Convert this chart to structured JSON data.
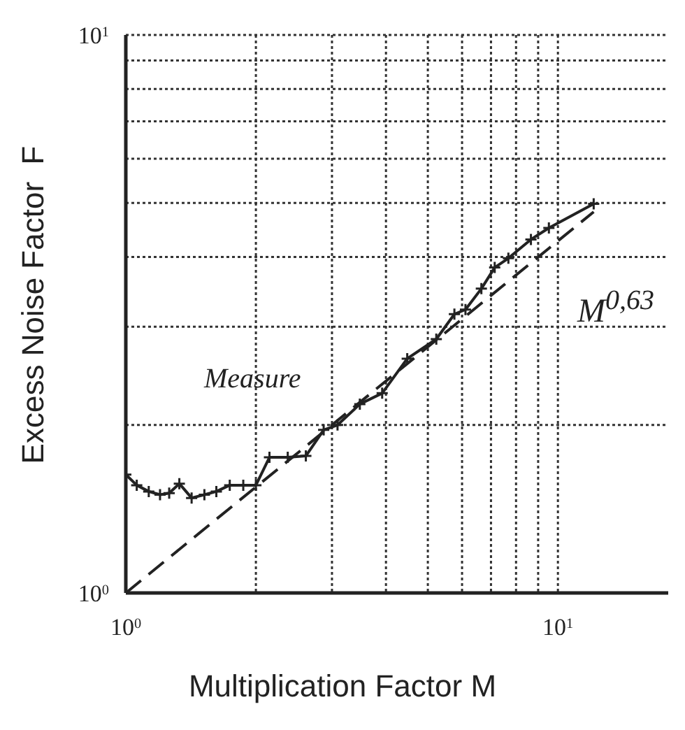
{
  "chart_data": {
    "type": "line",
    "xlabel": "Multiplication Factor M",
    "ylabel": "Excess Noise Factor  F",
    "log": "xy",
    "grid": true,
    "xlim": [
      1,
      18
    ],
    "ylim": [
      1,
      10
    ],
    "xticks": [
      {
        "value": 1,
        "label": "10$^{0}$"
      },
      {
        "value": 2,
        "label": null
      },
      {
        "value": 3,
        "label": null
      },
      {
        "value": 4,
        "label": null
      },
      {
        "value": 5,
        "label": null
      },
      {
        "value": 6,
        "label": null
      },
      {
        "value": 7,
        "label": null
      },
      {
        "value": 8,
        "label": null
      },
      {
        "value": 9,
        "label": null
      },
      {
        "value": 10,
        "label": "10$^{1}$"
      }
    ],
    "yticks": [
      {
        "value": 1,
        "label": "10$^{0}$"
      },
      {
        "value": 2,
        "label": null
      },
      {
        "value": 3,
        "label": null
      },
      {
        "value": 4,
        "label": null
      },
      {
        "value": 5,
        "label": null
      },
      {
        "value": 6,
        "label": null
      },
      {
        "value": 7,
        "label": null
      },
      {
        "value": 8,
        "label": null
      },
      {
        "value": 9,
        "label": null
      },
      {
        "value": 10,
        "label": "10$^{1}$"
      }
    ],
    "series": [
      {
        "name": "Measure",
        "color": "#222222",
        "marker": "cross",
        "line_style": "solid",
        "x": [
          1.0,
          1.06,
          1.13,
          1.2,
          1.26,
          1.33,
          1.42,
          1.52,
          1.62,
          1.74,
          1.87,
          2.0,
          2.15,
          2.37,
          2.61,
          2.87,
          3.09,
          3.48,
          3.92,
          4.48,
          5.23,
          5.76,
          6.11,
          6.65,
          7.14,
          7.68,
          8.66,
          9.53,
          12.1
        ],
        "values": [
          1.63,
          1.56,
          1.52,
          1.5,
          1.51,
          1.57,
          1.48,
          1.5,
          1.52,
          1.56,
          1.56,
          1.56,
          1.75,
          1.75,
          1.76,
          1.96,
          2.0,
          2.18,
          2.28,
          2.63,
          2.85,
          3.16,
          3.22,
          3.51,
          3.83,
          3.98,
          4.3,
          4.51,
          4.98
        ]
      },
      {
        "name": "M$^{0,63}$",
        "color": "#222222",
        "marker": "none",
        "line_style": "dashed",
        "x": [
          1,
          12.1
        ],
        "values": [
          1,
          4.82
        ]
      }
    ]
  }
}
